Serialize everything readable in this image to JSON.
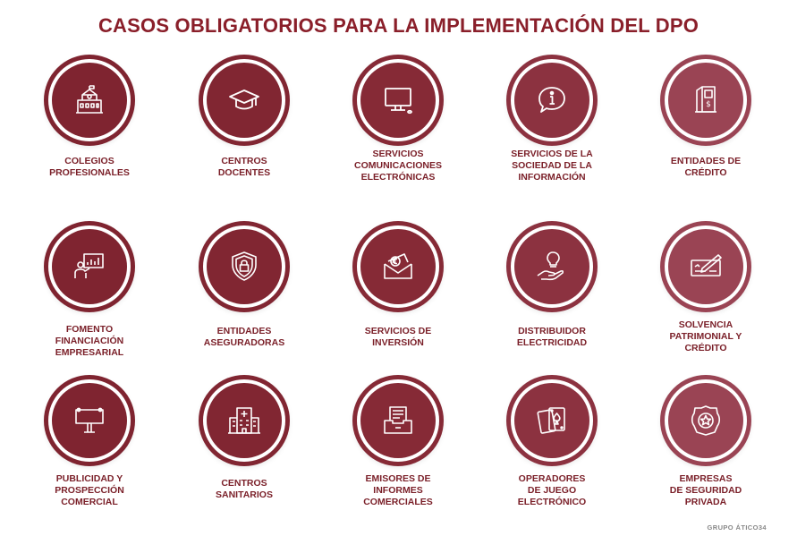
{
  "title": "CASOS OBLIGATORIOS PARA LA IMPLEMENTACIÓN DEL DPO",
  "colors": {
    "title": "#8a1f2a",
    "label": "#7a1f28",
    "circles": [
      "#7f2430",
      "#812632",
      "#862a36",
      "#8c3240",
      "#9a4454"
    ]
  },
  "items": [
    {
      "label": "COLEGIOS\nPROFESIONALES",
      "icon": "school-building-icon"
    },
    {
      "label": "CENTROS\nDOCENTES",
      "icon": "graduation-cap-icon"
    },
    {
      "label": "SERVICIOS\nCOMUNICACIONES\nELECTRÓNICAS",
      "icon": "computer-monitor-icon"
    },
    {
      "label": "SERVICIOS DE LA\nSOCIEDAD DE LA\nINFORMACIÓN",
      "icon": "info-speech-bubble-icon"
    },
    {
      "label": "ENTIDADES DE\nCRÉDITO",
      "icon": "atm-machine-icon"
    },
    {
      "label": "FOMENTO\nFINANCIACIÓN\nEMPRESARIAL",
      "icon": "presentation-board-icon"
    },
    {
      "label": "ENTIDADES\nASEGURADORAS",
      "icon": "shield-lock-icon"
    },
    {
      "label": "SERVICIOS DE\nINVERSIÓN",
      "icon": "euro-envelope-icon"
    },
    {
      "label": "DISTRIBUIDOR\nELECTRICIDAD",
      "icon": "lightbulb-hand-icon"
    },
    {
      "label": "SOLVENCIA\nPATRIMONIAL Y\nCRÉDITO",
      "icon": "cheque-pen-icon"
    },
    {
      "label": "PUBLICIDAD Y\nPROSPECCIÓN\nCOMERCIAL",
      "icon": "billboard-icon"
    },
    {
      "label": "CENTROS\nSANITARIOS",
      "icon": "hospital-icon"
    },
    {
      "label": "EMISORES DE\nINFORMES\nCOMERCIALES",
      "icon": "document-tray-icon"
    },
    {
      "label": "OPERADORES\nDE JUEGO\nELECTRÓNICO",
      "icon": "playing-cards-icon"
    },
    {
      "label": "EMPRESAS\nDE SEGURIDAD\nPRIVADA",
      "icon": "security-badge-icon"
    }
  ],
  "footer": "GRUPO ÁTICO34"
}
